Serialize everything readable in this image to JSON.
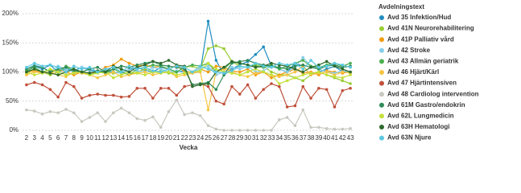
{
  "chart_data": {
    "type": "line",
    "x_label": "Vecka",
    "legend_title": "Avdelningstext",
    "legend": "right",
    "grid": true,
    "categories": [
      "2",
      "3",
      "4",
      "5",
      "6",
      "7",
      "8",
      "9",
      "10",
      "11",
      "12",
      "13",
      "14",
      "15",
      "16",
      "17",
      "18",
      "19",
      "20",
      "21",
      "22",
      "23",
      "24",
      "25",
      "26",
      "27",
      "28",
      "29",
      "30",
      "31",
      "32",
      "33",
      "34",
      "35",
      "36",
      "37",
      "38",
      "39",
      "40",
      "41",
      "42",
      "43"
    ],
    "ylim": [
      0,
      200
    ],
    "yticks": [
      {
        "value": 0,
        "label": "0%"
      },
      {
        "value": 50,
        "label": "50%"
      },
      {
        "value": 100,
        "label": "100%"
      },
      {
        "value": 150,
        "label": "150%"
      },
      {
        "value": 200,
        "label": "200%"
      }
    ],
    "series": [
      {
        "name": "Avd 35 Infektion/Hud",
        "color": "#1f8dbf",
        "values": [
          100,
          110,
          105,
          112,
          100,
          105,
          102,
          108,
          104,
          100,
          102,
          100,
          98,
          105,
          108,
          103,
          100,
          108,
          105,
          100,
          102,
          98,
          100,
          187,
          120,
          95,
          105,
          112,
          118,
          130,
          143,
          110,
          105,
          100,
          115,
          110,
          95,
          100,
          105,
          110,
          100,
          100
        ]
      },
      {
        "name": "Avd 41N Neurorehabilitering",
        "color": "#9acd32",
        "values": [
          98,
          105,
          100,
          95,
          100,
          108,
          102,
          98,
          95,
          100,
          100,
          98,
          102,
          95,
          100,
          105,
          100,
          102,
          98,
          100,
          108,
          110,
          105,
          140,
          145,
          140,
          118,
          110,
          108,
          112,
          110,
          100,
          95,
          95,
          90,
          85,
          95,
          100,
          95,
          90,
          85,
          80
        ]
      },
      {
        "name": "Avd 41P Palliativ vård",
        "color": "#f39c12",
        "values": [
          100,
          102,
          100,
          98,
          105,
          100,
          95,
          100,
          98,
          100,
          108,
          112,
          122,
          115,
          110,
          112,
          108,
          110,
          105,
          112,
          100,
          100,
          105,
          100,
          110,
          108,
          102,
          100,
          105,
          95,
          100,
          90,
          95,
          100,
          105,
          98,
          100,
          95,
          102,
          100,
          98,
          100
        ]
      },
      {
        "name": "Avd 42 Stroke",
        "color": "#87ceeb",
        "values": [
          105,
          112,
          108,
          100,
          110,
          105,
          100,
          108,
          102,
          100,
          105,
          100,
          98,
          105,
          102,
          100,
          108,
          105,
          100,
          102,
          98,
          100,
          105,
          110,
          95,
          100,
          108,
          105,
          110,
          100,
          102,
          110,
          105,
          100,
          108,
          125,
          110,
          105,
          100,
          98,
          102,
          100
        ]
      },
      {
        "name": "Avd 43 Allmän geriatrik",
        "color": "#4caf50",
        "values": [
          102,
          108,
          100,
          104,
          100,
          110,
          105,
          100,
          95,
          100,
          98,
          105,
          100,
          95,
          105,
          108,
          112,
          110,
          105,
          100,
          108,
          112,
          110,
          115,
          100,
          105,
          118,
          115,
          112,
          110,
          108,
          112,
          105,
          110,
          115,
          120,
          110,
          108,
          112,
          115,
          110,
          115
        ]
      },
      {
        "name": "Avd 46 Hjärt/Kärl",
        "color": "#f5c542",
        "values": [
          95,
          100,
          98,
          100,
          95,
          92,
          100,
          98,
          95,
          90,
          95,
          100,
          92,
          95,
          98,
          100,
          95,
          98,
          100,
          92,
          95,
          98,
          100,
          35,
          100,
          105,
          100,
          95,
          92,
          98,
          100,
          95,
          92,
          95,
          100,
          110,
          95,
          98,
          100,
          95,
          100,
          98
        ]
      },
      {
        "name": "Avd 47 Hjärtintensiven",
        "color": "#c0503a",
        "values": [
          78,
          82,
          78,
          70,
          57,
          82,
          75,
          55,
          60,
          62,
          60,
          60,
          57,
          58,
          72,
          72,
          55,
          72,
          72,
          60,
          75,
          78,
          80,
          75,
          50,
          45,
          75,
          62,
          78,
          55,
          70,
          80,
          75,
          40,
          42,
          75,
          55,
          72,
          70,
          40,
          68,
          72
        ]
      },
      {
        "name": "Avd 48 Cardiolog intervention",
        "color": "#c8c8c0",
        "values": [
          35,
          33,
          28,
          32,
          30,
          36,
          30,
          15,
          22,
          30,
          15,
          30,
          38,
          30,
          20,
          17,
          23,
          5,
          32,
          52,
          27,
          30,
          25,
          8,
          2,
          0,
          0,
          0,
          0,
          0,
          0,
          0,
          18,
          22,
          8,
          35,
          5,
          5,
          3,
          2,
          2,
          3
        ]
      },
      {
        "name": "Avd 61M Gastro/endokrin",
        "color": "#2e8b57",
        "values": [
          105,
          110,
          108,
          100,
          105,
          108,
          102,
          100,
          105,
          108,
          100,
          105,
          110,
          108,
          112,
          115,
          118,
          112,
          110,
          108,
          105,
          78,
          80,
          82,
          70,
          95,
          115,
          118,
          120,
          115,
          112,
          110,
          108,
          105,
          110,
          112,
          108,
          105,
          110,
          112,
          108,
          110
        ]
      },
      {
        "name": "Avd 62L Lungmedicin",
        "color": "#c5e03a",
        "values": [
          100,
          95,
          98,
          105,
          100,
          95,
          98,
          100,
          95,
          98,
          100,
          90,
          95,
          100,
          98,
          95,
          100,
          98,
          100,
          95,
          98,
          100,
          102,
          115,
          105,
          100,
          98,
          95,
          100,
          105,
          100,
          95,
          80,
          85,
          90,
          95,
          98,
          100,
          95,
          92,
          90,
          95
        ]
      },
      {
        "name": "Avd 63H Hematologi",
        "color": "#2d6a2d",
        "values": [
          100,
          105,
          100,
          98,
          95,
          100,
          105,
          100,
          98,
          102,
          100,
          110,
          105,
          100,
          108,
          112,
          118,
          115,
          120,
          112,
          110,
          75,
          78,
          80,
          100,
          108,
          118,
          115,
          112,
          108,
          110,
          115,
          112,
          110,
          105,
          100,
          108,
          112,
          118,
          110,
          105,
          100
        ]
      },
      {
        "name": "Avd 63N Njure",
        "color": "#5bc8e0",
        "values": [
          108,
          115,
          110,
          112,
          108,
          100,
          110,
          105,
          108,
          100,
          105,
          108,
          100,
          110,
          105,
          108,
          102,
          100,
          105,
          110,
          108,
          100,
          110,
          105,
          100,
          98,
          102,
          110,
          108,
          115,
          110,
          108,
          115,
          112,
          115,
          105,
          120,
          108,
          110,
          115,
          112,
          108
        ]
      }
    ]
  }
}
